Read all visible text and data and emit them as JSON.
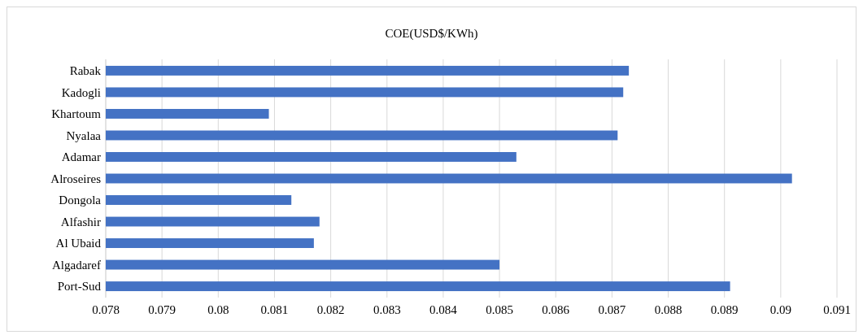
{
  "chart_data": {
    "type": "bar",
    "orientation": "horizontal",
    "title": "COE(USD$/KWh)",
    "categories": [
      "Rabak",
      "Kadogli",
      "Khartoum",
      "Nyalaa",
      "Adamar",
      "Alroseires",
      "Dongola",
      "Alfashir",
      "Al Ubaid",
      "Algadaref",
      "Port-Sud"
    ],
    "values": [
      0.0873,
      0.0872,
      0.0809,
      0.0871,
      0.0853,
      0.0902,
      0.0813,
      0.0818,
      0.0817,
      0.085,
      0.0891
    ],
    "color": "#4472c4",
    "xlim": [
      0.078,
      0.091
    ],
    "xticks": [
      0.078,
      0.079,
      0.08,
      0.081,
      0.082,
      0.083,
      0.084,
      0.085,
      0.086,
      0.087,
      0.088,
      0.089,
      0.09,
      0.091
    ],
    "grid": "x"
  }
}
